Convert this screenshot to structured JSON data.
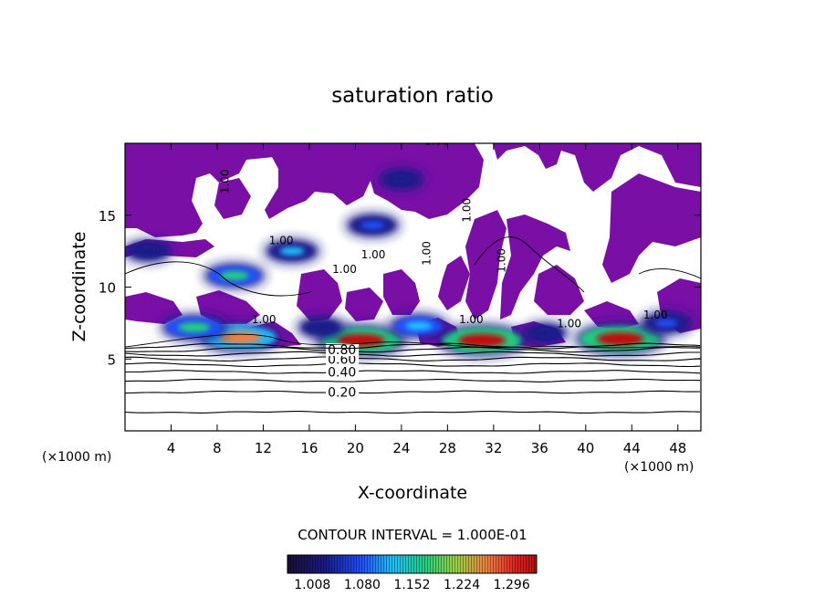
{
  "chart_data": {
    "type": "heatmap",
    "title": "saturation ratio",
    "xlabel": "X-coordinate",
    "ylabel": "Z-coordinate",
    "x_unit_left": "(×1000 m)",
    "x_unit_right": "(×1000 m)",
    "xlim": [
      0,
      50
    ],
    "ylim": [
      0,
      20
    ],
    "x_ticks": [
      "4",
      "8",
      "12",
      "16",
      "20",
      "24",
      "28",
      "32",
      "36",
      "40",
      "44",
      "48"
    ],
    "y_ticks": [
      "5",
      "10",
      "15"
    ],
    "contour_interval_text": "CONTOUR INTERVAL = 1.000E-01",
    "colorbar_ticks": [
      "1.008",
      "1.080",
      "1.152",
      "1.224",
      "1.296"
    ],
    "colorbar_range": [
      0.972,
      1.332
    ],
    "colors": [
      "#0a0a30",
      "#1a1a8a",
      "#2050ff",
      "#20c0ff",
      "#20d080",
      "#40c040",
      "#c0d040",
      "#f08040",
      "#e02020",
      "#c01010"
    ],
    "saturated_fill": "#7a0fa6",
    "contour_lines": [
      {
        "level": 0.1,
        "z": 1.3
      },
      {
        "level": 0.2,
        "z": 2.7,
        "label": "0.20"
      },
      {
        "level": 0.3,
        "z": 3.5
      },
      {
        "level": 0.4,
        "z": 4.1,
        "label": "0.40"
      },
      {
        "level": 0.5,
        "z": 4.6
      },
      {
        "level": 0.6,
        "z": 5.0,
        "label": "0.60"
      },
      {
        "level": 0.7,
        "z": 5.35
      },
      {
        "level": 0.8,
        "z": 5.65,
        "label": "0.80"
      },
      {
        "level": 0.9,
        "z": 5.9
      }
    ],
    "contour_labels_1_00": [
      "1.00",
      "1.00",
      "1.00",
      "1.00",
      "1.00",
      "1.00",
      "1.00",
      "1.00",
      "1.00",
      "1.00",
      "1.00",
      "1.00"
    ],
    "supersaturated_patches": [
      {
        "x": 20.5,
        "z": 6.3,
        "value": 1.3
      },
      {
        "x": 31.0,
        "z": 6.3,
        "value": 1.3
      },
      {
        "x": 43.0,
        "z": 6.4,
        "value": 1.3
      },
      {
        "x": 10.0,
        "z": 6.5,
        "value": 1.25
      },
      {
        "x": 6.0,
        "z": 7.2,
        "value": 1.15
      },
      {
        "x": 9.5,
        "z": 10.8,
        "value": 1.12
      },
      {
        "x": 14.5,
        "z": 12.5,
        "value": 1.08
      },
      {
        "x": 21.5,
        "z": 14.3,
        "value": 1.07
      },
      {
        "x": 2.0,
        "z": 12.5,
        "value": 1.04
      },
      {
        "x": 24.0,
        "z": 17.5,
        "value": 1.02
      },
      {
        "x": 25.5,
        "z": 7.3,
        "value": 1.1
      },
      {
        "x": 47.0,
        "z": 7.5,
        "value": 1.06
      },
      {
        "x": 17.0,
        "z": 7.2,
        "value": 1.03
      },
      {
        "x": 36.5,
        "z": 6.8,
        "value": 1.02
      }
    ]
  }
}
